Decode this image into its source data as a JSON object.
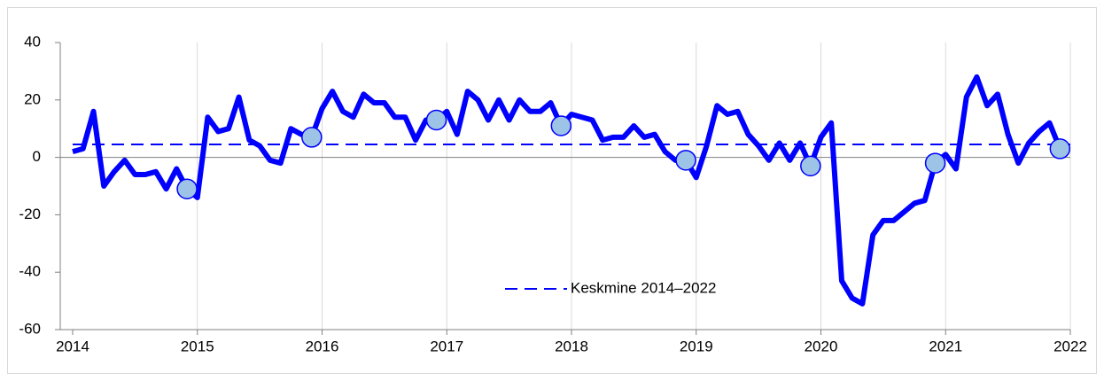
{
  "chart_data": {
    "type": "line",
    "x": [
      2014,
      2014.083,
      2014.167,
      2014.25,
      2014.333,
      2014.417,
      2014.5,
      2014.583,
      2014.667,
      2014.75,
      2014.833,
      2014.917,
      2015,
      2015.083,
      2015.167,
      2015.25,
      2015.333,
      2015.417,
      2015.5,
      2015.583,
      2015.667,
      2015.75,
      2015.833,
      2015.917,
      2016,
      2016.083,
      2016.167,
      2016.25,
      2016.333,
      2016.417,
      2016.5,
      2016.583,
      2016.667,
      2016.75,
      2016.833,
      2016.917,
      2017,
      2017.083,
      2017.167,
      2017.25,
      2017.333,
      2017.417,
      2017.5,
      2017.583,
      2017.667,
      2017.75,
      2017.833,
      2017.917,
      2018,
      2018.083,
      2018.167,
      2018.25,
      2018.333,
      2018.417,
      2018.5,
      2018.583,
      2018.667,
      2018.75,
      2018.833,
      2018.917,
      2019,
      2019.083,
      2019.167,
      2019.25,
      2019.333,
      2019.417,
      2019.5,
      2019.583,
      2019.667,
      2019.75,
      2019.833,
      2019.917,
      2020,
      2020.083,
      2020.167,
      2020.25,
      2020.333,
      2020.417,
      2020.5,
      2020.583,
      2020.667,
      2020.75,
      2020.833,
      2020.917,
      2021,
      2021.083,
      2021.167,
      2021.25,
      2021.333,
      2021.417,
      2021.5,
      2021.583,
      2021.667,
      2021.75,
      2021.833,
      2021.917
    ],
    "values": [
      2,
      3,
      16,
      -10,
      -5,
      -1,
      -6,
      -6,
      -5,
      -11,
      -4,
      -11,
      -14,
      14,
      9,
      10,
      21,
      6,
      4,
      -1,
      -2,
      10,
      8,
      7,
      17,
      23,
      16,
      14,
      22,
      19,
      19,
      14,
      14,
      6,
      13,
      13,
      16,
      8,
      23,
      20,
      13,
      20,
      13,
      20,
      16,
      16,
      19,
      11,
      15,
      14,
      13,
      6,
      7,
      7,
      11,
      7,
      8,
      2,
      -1,
      -1,
      -7,
      4,
      18,
      15,
      16,
      8,
      4,
      -1,
      5,
      -1,
      5,
      -3,
      7,
      12,
      -43,
      -49,
      -51,
      -27,
      -22,
      -22,
      -19,
      -16,
      -15,
      -2,
      1,
      -4,
      21,
      28,
      18,
      22,
      8,
      -2,
      5,
      9,
      12,
      3
    ],
    "color": "#0000ff",
    "marker_color": "#9dc3e6",
    "reference_line": {
      "name": "Keskmine 2014–2022",
      "value": 4.5,
      "color": "#0000ff"
    },
    "xlim": [
      2014,
      2022
    ],
    "xticks": [
      2014,
      2015,
      2016,
      2017,
      2018,
      2019,
      2020,
      2021,
      2022
    ],
    "ylim": [
      -60,
      40
    ],
    "yticks": [
      -60,
      -40,
      -20,
      0,
      20,
      40
    ],
    "grid": "x"
  }
}
